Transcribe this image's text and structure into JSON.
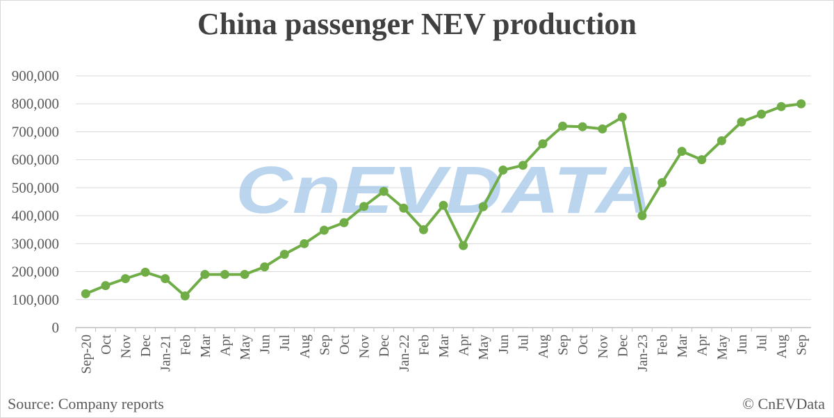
{
  "chart_data": {
    "type": "line",
    "title": "China passenger NEV production",
    "xlabel": "",
    "ylabel": "",
    "ylim": [
      0,
      900000
    ],
    "yticks": [
      0,
      100000,
      200000,
      300000,
      400000,
      500000,
      600000,
      700000,
      800000,
      900000
    ],
    "ytick_labels": [
      "0",
      "100,000",
      "200,000",
      "300,000",
      "400,000",
      "500,000",
      "600,000",
      "700,000",
      "800,000",
      "900,000"
    ],
    "grid": true,
    "legend": "none",
    "categories": [
      "Sep-20",
      "Oct",
      "Nov",
      "Dec",
      "Jan-21",
      "Feb",
      "Mar",
      "Apr",
      "May",
      "Jun",
      "Jul",
      "Aug",
      "Sep",
      "Oct",
      "Nov",
      "Dec",
      "Jan-22",
      "Feb",
      "Mar",
      "Apr",
      "May",
      "Jun",
      "Jul",
      "Aug",
      "Sep",
      "Oct",
      "Nov",
      "Dec",
      "Jan-23",
      "Feb",
      "Mar",
      "Apr",
      "May",
      "Jun",
      "Jul",
      "Aug",
      "Sep"
    ],
    "series": [
      {
        "values": [
          121000,
          150000,
          175000,
          198000,
          175000,
          113000,
          190000,
          190000,
          190000,
          217000,
          262000,
          300000,
          348000,
          375000,
          433000,
          487000,
          427000,
          350000,
          437000,
          293000,
          432000,
          563000,
          580000,
          657000,
          720000,
          718000,
          710000,
          752000,
          400000,
          518000,
          630000,
          600000,
          668000,
          735000,
          763000,
          790000,
          800000
        ],
        "color": "#70ad47"
      }
    ],
    "watermark": "CnEVDATA",
    "watermark_color": "#9dc3e6",
    "grid_color": "#d9d9d9",
    "axis_color": "#595959"
  },
  "footer": {
    "source": "Source: Company reports",
    "copyright": "© CnEVData"
  }
}
